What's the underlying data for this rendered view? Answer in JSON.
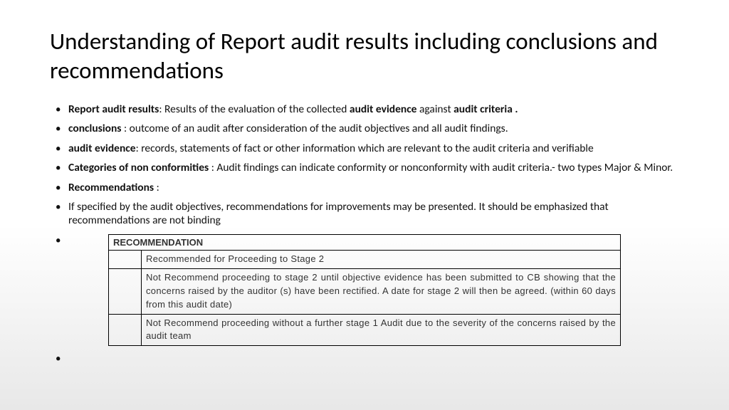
{
  "title": "Understanding of Report audit results including conclusions and recommendations",
  "bullets": {
    "b0_strong": "Report audit results",
    "b0_rest_a": ": Results of the evaluation of the collected ",
    "b0_mid_strong": "audit evidence",
    "b0_rest_b": "  against ",
    "b0_end_strong": "audit criteria .",
    "b1_strong": "conclusions ",
    "b1_rest": ": outcome of an audit  after consideration of the audit objectives and all audit findings.",
    "b2_strong": "audit evidence",
    "b2_rest": ": records, statements of fact or other information which are relevant to the audit criteria  and verifiable",
    "b3_strong": "Categories of non conformities  ",
    "b3_rest": ": Audit findings can indicate conformity or nonconformity with audit criteria.- two types Major & Minor.",
    "b4_strong": "Recommendations ",
    "b4_rest": ":",
    "b5": "If specified by the audit objectives, recommendations for improvements may be presented. It should be emphasized that recommendations are not binding"
  },
  "table": {
    "header": "RECOMMENDATION",
    "rows": [
      "Recommended  for  Proceeding  to  Stage  2",
      "Not  Recommend  proceeding  to  stage  2  until  objective  evidence  has  been  submitted  to  CB  showing  that  the  concerns  raised  by  the  auditor  (s)  have  been  rectified.  A  date  for  stage  2  will  then  be  agreed.  (within  60  days  from  this  audit  date)",
      "Not  Recommend  proceeding  without  a  further  stage  1  Audit  due  to  the  severity  of  the  concerns  raised  by  the  audit  team"
    ]
  }
}
